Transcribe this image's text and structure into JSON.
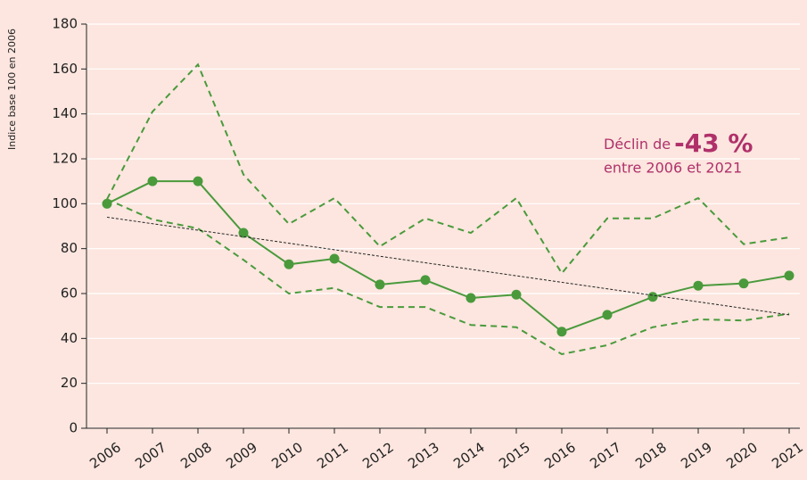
{
  "chart_data": {
    "type": "line",
    "y_label": "Indice base 100 en 2006",
    "annotation": {
      "line1": "Déclin de",
      "highlight": "-43 %",
      "line2": "entre 2006 et 2021",
      "color": "#b0306a"
    },
    "categories": [
      "2006",
      "2007",
      "2008",
      "2009",
      "2010",
      "2011",
      "2012",
      "2013",
      "2014",
      "2015",
      "2016",
      "2017",
      "2018",
      "2019",
      "2020",
      "2021"
    ],
    "series": [
      {
        "color": "#4a9a3c",
        "style": "solid",
        "markers": true,
        "values": [
          100,
          110,
          110,
          87,
          73,
          75.5,
          64,
          66,
          58,
          59.5,
          43,
          50.5,
          58.5,
          63.5,
          64.5,
          68
        ]
      },
      {
        "color": "#4a9a3c",
        "style": "dashed",
        "markers": false,
        "values": [
          102,
          141,
          162,
          113,
          91,
          102.5,
          81,
          93.5,
          87,
          102.5,
          69,
          93.5,
          93.5,
          102.5,
          82,
          85
        ]
      },
      {
        "color": "#4a9a3c",
        "style": "dashed",
        "markers": false,
        "values": [
          102,
          93,
          89,
          75,
          60,
          62.5,
          54,
          54,
          46,
          45,
          33,
          37,
          45,
          48.5,
          48,
          51
        ]
      },
      {
        "color": "#222222",
        "style": "dotted",
        "markers": false,
        "values": [
          94,
          null,
          null,
          null,
          null,
          null,
          null,
          null,
          null,
          null,
          null,
          null,
          null,
          null,
          null,
          50.5
        ]
      }
    ],
    "ylim": [
      0,
      180
    ],
    "yticks": [
      0,
      20,
      40,
      60,
      80,
      100,
      120,
      140,
      160,
      180
    ],
    "grid": true
  }
}
